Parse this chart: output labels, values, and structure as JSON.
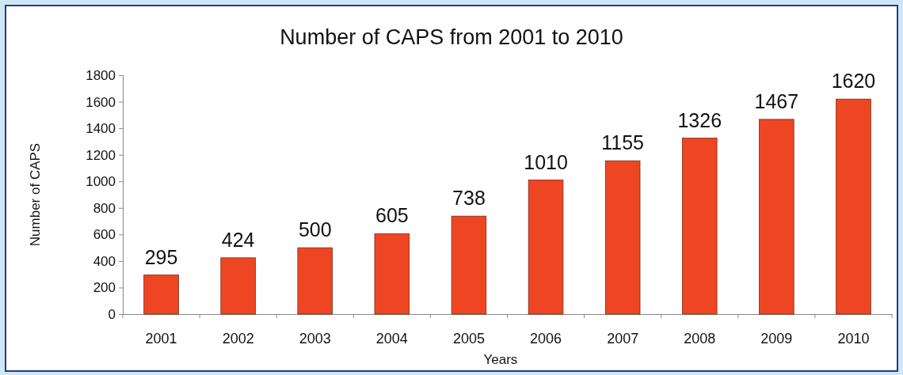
{
  "chart_data": {
    "type": "bar",
    "title": "Number of CAPS from 2001 to 2010",
    "xlabel": "Years",
    "ylabel": "Number of CAPS",
    "categories": [
      "2001",
      "2002",
      "2003",
      "2004",
      "2005",
      "2006",
      "2007",
      "2008",
      "2009",
      "2010"
    ],
    "values": [
      295,
      424,
      500,
      605,
      738,
      1010,
      1155,
      1326,
      1467,
      1620
    ],
    "color": "#ee4623",
    "ylim": [
      0,
      1800
    ],
    "yticks": [
      0,
      200,
      400,
      600,
      800,
      1000,
      1200,
      1400,
      1600,
      1800
    ],
    "grid": false,
    "data_labels": true
  }
}
